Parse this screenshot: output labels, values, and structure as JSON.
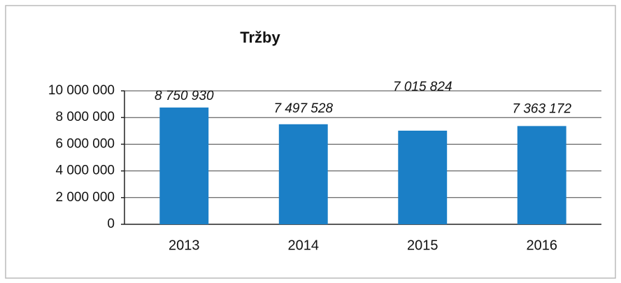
{
  "chart_data": {
    "type": "bar",
    "title": "Tržby",
    "categories": [
      "2013",
      "2014",
      "2015",
      "2016"
    ],
    "values": [
      8750930,
      7497528,
      7015824,
      7363172
    ],
    "value_labels": [
      "8 750 930",
      "7 497 528",
      "7 015 824",
      "7 363 172"
    ],
    "color": "#1b7fc6",
    "ylim": [
      0,
      10000000
    ],
    "yticks": [
      0,
      {
        "value": 2000000,
        "label": "2 000 000"
      },
      {
        "value": 4000000,
        "label": "4 000 000"
      },
      {
        "value": 6000000,
        "label": "6 000 000"
      },
      {
        "value": 8000000,
        "label": "8 000 000"
      },
      {
        "value": 10000000,
        "label": "10 000 000"
      }
    ],
    "grid": true
  }
}
